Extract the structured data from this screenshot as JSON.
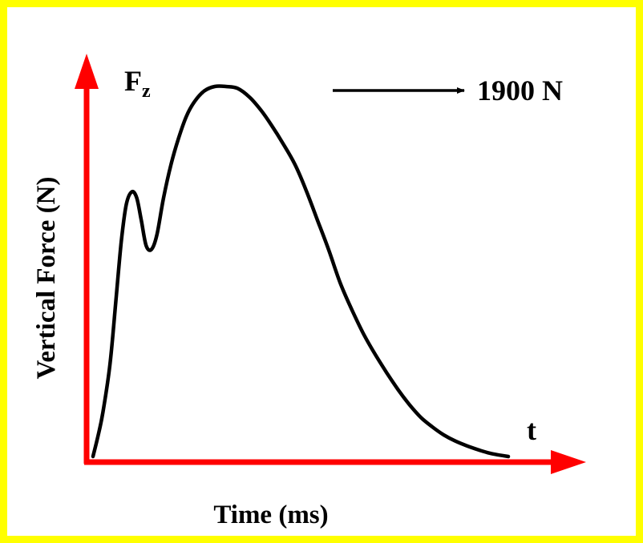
{
  "frame": {
    "border_color": "#ffff00",
    "background": "#ffffff"
  },
  "chart_data": {
    "type": "line",
    "title": "",
    "xlabel": "Time (ms)",
    "ylabel": "Vertical Force (N)",
    "x_axis_symbol": "t",
    "y_axis_symbol": {
      "main": "F",
      "subscript": "z"
    },
    "axis_color": "#ff0000",
    "line_color": "#000000",
    "grid": false,
    "legend": "none",
    "xlim": [
      0,
      1
    ],
    "ylim": [
      0,
      1
    ],
    "x": [
      0.0,
      0.012,
      0.024,
      0.041,
      0.055,
      0.068,
      0.08,
      0.093,
      0.105,
      0.116,
      0.128,
      0.141,
      0.154,
      0.17,
      0.188,
      0.206,
      0.225,
      0.245,
      0.268,
      0.293,
      0.32,
      0.348,
      0.378,
      0.405,
      0.43,
      0.458,
      0.486,
      0.513,
      0.54,
      0.567,
      0.595,
      0.624,
      0.652,
      0.68,
      0.708,
      0.735,
      0.762,
      0.79,
      0.817,
      0.845,
      0.872,
      0.9,
      0.928,
      0.955,
      0.978,
      1.0
    ],
    "y": [
      0.0,
      0.055,
      0.12,
      0.25,
      0.42,
      0.58,
      0.68,
      0.715,
      0.7,
      0.64,
      0.57,
      0.56,
      0.6,
      0.7,
      0.79,
      0.86,
      0.92,
      0.96,
      0.988,
      1.0,
      1.0,
      0.995,
      0.97,
      0.935,
      0.895,
      0.845,
      0.79,
      0.72,
      0.64,
      0.56,
      0.47,
      0.395,
      0.33,
      0.275,
      0.225,
      0.18,
      0.14,
      0.105,
      0.08,
      0.058,
      0.042,
      0.029,
      0.018,
      0.009,
      0.004,
      0.0
    ],
    "annotations": [
      {
        "text": "1900 N",
        "arrow": "pointing right from peak"
      }
    ]
  }
}
